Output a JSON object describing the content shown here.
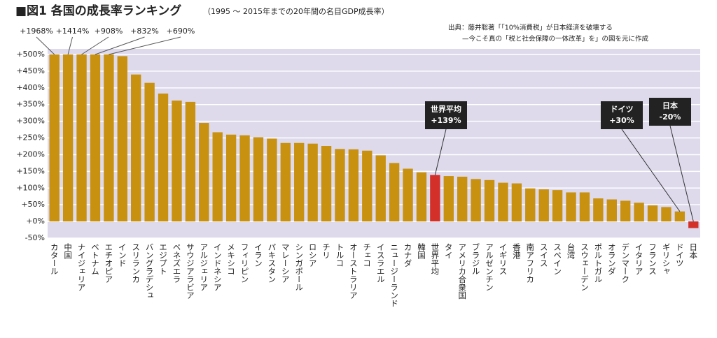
{
  "chart_data": {
    "type": "bar",
    "title": "■図1 各国の成長率ランキング",
    "subtitle": "（1995 ～ 2015年までの20年間の名目GDP成長率）",
    "source": [
      "出典：藤井聡著「「10%消費税」が日本経済を破壊する",
      "—今こそ真の「税と社会保障の一体改革」を」の図を元に作成"
    ],
    "categories": [
      "カタール",
      "中国",
      "ナイジェリア",
      "ベトナム",
      "エチオピア",
      "インド",
      "スリランカ",
      "バングラデシュ",
      "エジプト",
      "ベネズエラ",
      "サウジアラビア",
      "アルジェリア",
      "インドネシア",
      "メキシコ",
      "フィリピン",
      "イラン",
      "パキスタン",
      "マレーシア",
      "シンガポール",
      "ロシア",
      "チリ",
      "トルコ",
      "オーストラリア",
      "チェコ",
      "イスラエル",
      "ニュージーランド",
      "カナダ",
      "韓国",
      "世界平均",
      "タイ",
      "アメリカ合衆国",
      "ブラジル",
      "アルゼンチン",
      "イギリス",
      "香港",
      "南アフリカ",
      "スイス",
      "スペイン",
      "台湾",
      "スウェーデン",
      "ポルトガル",
      "オランダ",
      "デンマーク",
      "イタリア",
      "フランス",
      "ギリシャ",
      "ドイツ",
      "日本"
    ],
    "values": [
      1968,
      1414,
      908,
      832,
      690,
      495,
      440,
      415,
      383,
      362,
      358,
      295,
      267,
      260,
      258,
      252,
      248,
      235,
      235,
      233,
      226,
      217,
      216,
      212,
      198,
      175,
      158,
      147,
      139,
      136,
      134,
      127,
      124,
      116,
      114,
      99,
      96,
      94,
      87,
      87,
      69,
      66,
      62,
      56,
      48,
      43,
      30,
      -20
    ],
    "value_labels": [
      "+1968%",
      "+1414%",
      "+908%",
      "+832%",
      "+690%",
      null,
      null,
      null,
      null,
      null,
      null,
      null,
      null,
      null,
      null,
      null,
      null,
      null,
      null,
      null,
      null,
      null,
      null,
      null,
      null,
      null,
      null,
      null,
      "+139%",
      null,
      null,
      null,
      null,
      null,
      null,
      null,
      null,
      null,
      null,
      null,
      null,
      null,
      null,
      null,
      null,
      null,
      "+30%",
      "-20%"
    ],
    "colors": [
      "#c8910f",
      "#c8910f",
      "#c8910f",
      "#c8910f",
      "#c8910f",
      "#c8910f",
      "#c8910f",
      "#c8910f",
      "#c8910f",
      "#c8910f",
      "#c8910f",
      "#c8910f",
      "#c8910f",
      "#c8910f",
      "#c8910f",
      "#c8910f",
      "#c8910f",
      "#c8910f",
      "#c8910f",
      "#c8910f",
      "#c8910f",
      "#c8910f",
      "#c8910f",
      "#c8910f",
      "#c8910f",
      "#c8910f",
      "#c8910f",
      "#c8910f",
      "#d3302a",
      "#c8910f",
      "#c8910f",
      "#c8910f",
      "#c8910f",
      "#c8910f",
      "#c8910f",
      "#c8910f",
      "#c8910f",
      "#c8910f",
      "#c8910f",
      "#c8910f",
      "#c8910f",
      "#c8910f",
      "#c8910f",
      "#c8910f",
      "#c8910f",
      "#c8910f",
      "#c8910f",
      "#d3302a"
    ],
    "ylim": [
      -50,
      500
    ],
    "yticks": [
      {
        "value": 500,
        "label": "+500%"
      },
      {
        "value": 450,
        "label": "+450%"
      },
      {
        "value": 400,
        "label": "+400%"
      },
      {
        "value": 350,
        "label": "+350%"
      },
      {
        "value": 300,
        "label": "+300%"
      },
      {
        "value": 250,
        "label": "+250%"
      },
      {
        "value": 200,
        "label": "+200%"
      },
      {
        "value": 150,
        "label": "+150%"
      },
      {
        "value": 100,
        "label": "+100%"
      },
      {
        "value": 50,
        "label": "+50%"
      },
      {
        "value": 0,
        "label": "+0%"
      },
      {
        "value": -50,
        "label": "-50%"
      }
    ],
    "grid": true
  }
}
